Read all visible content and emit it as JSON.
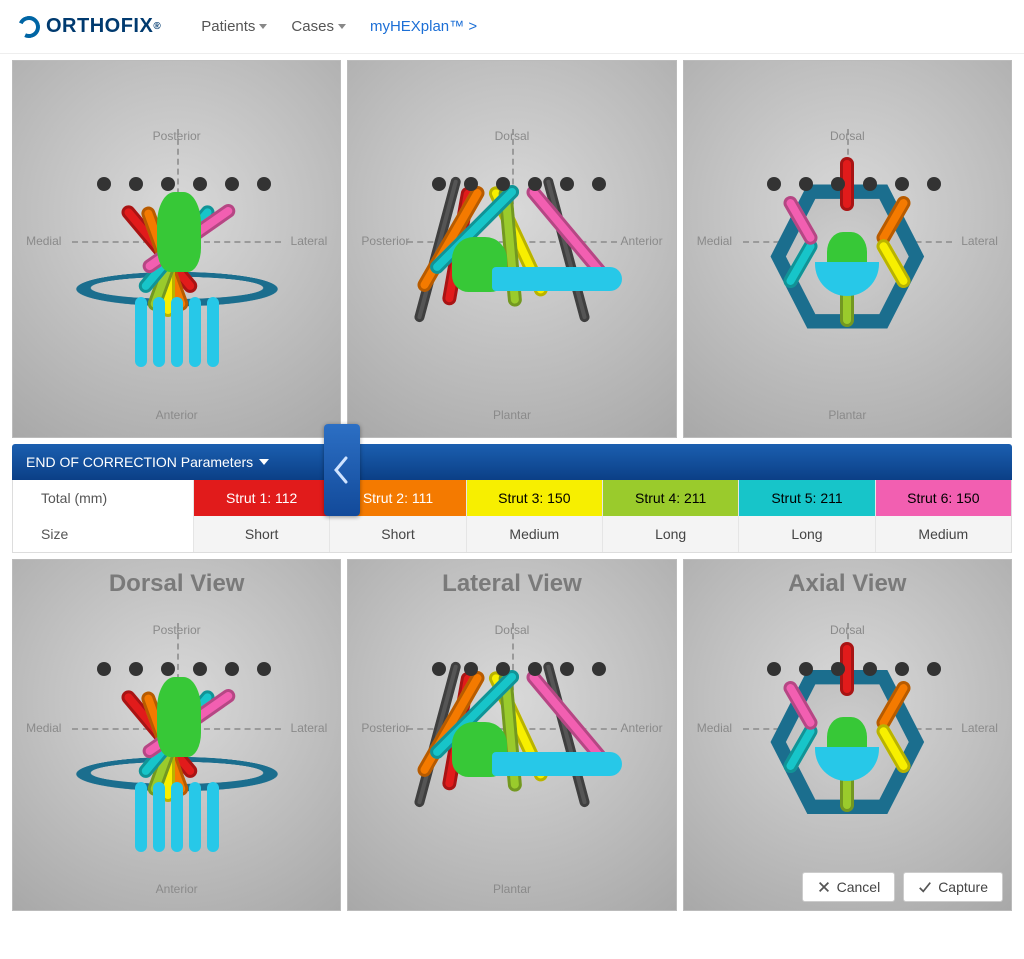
{
  "brand": {
    "name": "ORTHOFIX",
    "reg": "®",
    "accent": "#0065a4",
    "text_color": "#003a6f"
  },
  "nav": {
    "items": [
      {
        "label": "Patients",
        "dropdown": true,
        "active": false
      },
      {
        "label": "Cases",
        "dropdown": true,
        "active": false
      },
      {
        "label": "myHEXplan™ >",
        "dropdown": false,
        "active": true
      }
    ],
    "active_color": "#1c6fd6"
  },
  "views_top": [
    {
      "top": "Posterior",
      "bottom": "Anterior",
      "left": "Medial",
      "right": "Lateral",
      "kind": "dorsal"
    },
    {
      "top": "Dorsal",
      "bottom": "Plantar",
      "left": "Posterior",
      "right": "Anterior",
      "kind": "lateral"
    },
    {
      "top": "Dorsal",
      "bottom": "Plantar",
      "left": "Medial",
      "right": "Lateral",
      "kind": "axial"
    }
  ],
  "views_bottom": [
    {
      "title": "Dorsal View",
      "top": "Posterior",
      "bottom": "Anterior",
      "left": "Medial",
      "right": "Lateral",
      "kind": "dorsal"
    },
    {
      "title": "Lateral View",
      "top": "Dorsal",
      "bottom": "Plantar",
      "left": "Posterior",
      "right": "Anterior",
      "kind": "lateral"
    },
    {
      "title": "Axial View",
      "top": "Dorsal",
      "bottom": "Plantar",
      "left": "Medial",
      "right": "Lateral",
      "kind": "axial"
    }
  ],
  "parameters": {
    "header": "END OF CORRECTION Parameters",
    "row_labels": {
      "total": "Total (mm)",
      "size": "Size"
    },
    "struts": [
      {
        "n": 1,
        "label": "Strut 1: 112",
        "value": 112,
        "size": "Short",
        "color": "#e11b1b"
      },
      {
        "n": 2,
        "label": "Strut 2: 111",
        "value": 111,
        "size": "Short",
        "color": "#f47a00"
      },
      {
        "n": 3,
        "label": "Strut 3: 150",
        "value": 150,
        "size": "Medium",
        "color": "#f7ef00"
      },
      {
        "n": 4,
        "label": "Strut 4: 211",
        "value": 211,
        "size": "Long",
        "color": "#9acb2c"
      },
      {
        "n": 5,
        "label": "Strut 5: 211",
        "value": 211,
        "size": "Long",
        "color": "#17c5c9"
      },
      {
        "n": 6,
        "label": "Strut 6: 150",
        "value": 150,
        "size": "Medium",
        "color": "#f25fb1"
      }
    ],
    "header_gradient": [
      "#1b5fb0",
      "#0b3f86"
    ]
  },
  "buttons": {
    "cancel": "Cancel",
    "capture": "Capture"
  },
  "scene_colors": {
    "ring": "#1b6e8e",
    "bone": "#37c837",
    "foot": "#27c8e8",
    "bg_inner": "#d9d9d9",
    "bg_outer": "#a8a8a8"
  }
}
